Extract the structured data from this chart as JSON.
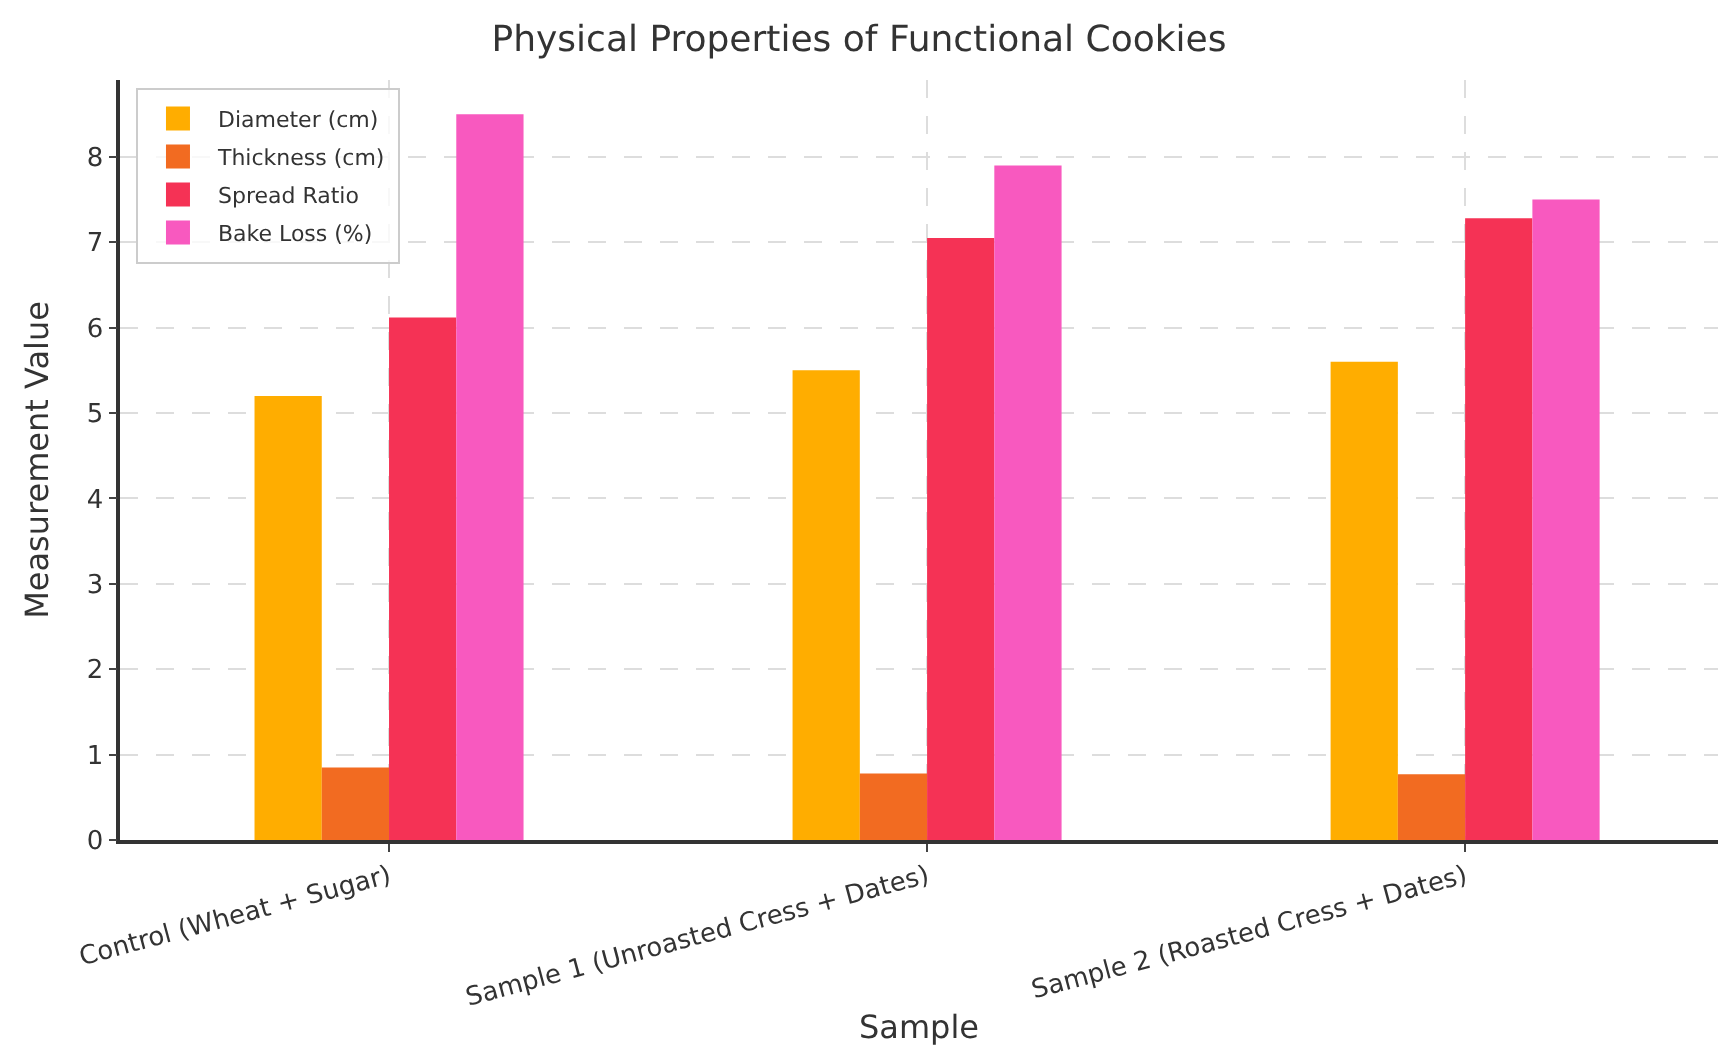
{
  "chart_data": {
    "type": "bar",
    "title": "Physical Properties of Functional Cookies",
    "xlabel": "Sample",
    "ylabel": "Measurement Value",
    "categories": [
      "Control (Wheat + Sugar)",
      "Sample 1 (Unroasted Cress + Dates)",
      "Sample 2 (Roasted Cress + Dates)"
    ],
    "series": [
      {
        "name": "Diameter (cm)",
        "color": "#ffad00",
        "values": [
          5.2,
          5.5,
          5.6
        ]
      },
      {
        "name": "Thickness (cm)",
        "color": "#f26b21",
        "values": [
          0.85,
          0.78,
          0.77
        ]
      },
      {
        "name": "Spread Ratio",
        "color": "#f53255",
        "values": [
          6.12,
          7.05,
          7.28
        ]
      },
      {
        "name": "Bake Loss (%)",
        "color": "#f859bf",
        "values": [
          8.5,
          7.9,
          7.5
        ]
      }
    ],
    "ylim": [
      0,
      8.9
    ],
    "yticks": [
      0,
      1,
      2,
      3,
      4,
      5,
      6,
      7,
      8
    ],
    "grid": true,
    "legend": "top left"
  }
}
